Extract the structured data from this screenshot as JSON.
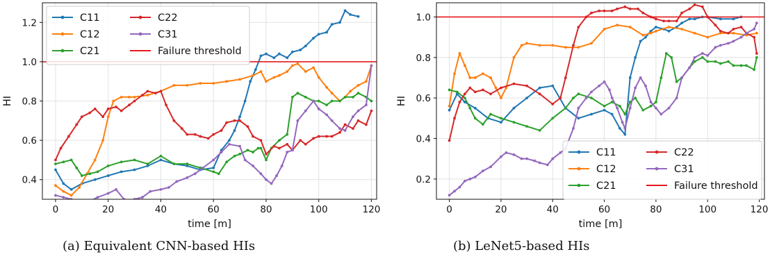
{
  "chart_data": [
    {
      "type": "line",
      "caption": "(a) Equivalent CNN-based HIs",
      "xlabel": "time [m]",
      "ylabel": "HI",
      "xlim": [
        -5,
        122
      ],
      "ylim": [
        0.3,
        1.3
      ],
      "xticks": [
        0,
        20,
        40,
        60,
        80,
        100,
        120
      ],
      "yticks": [
        0.4,
        0.6,
        0.8,
        1.0,
        1.2
      ],
      "ytick_labels": [
        "0.4",
        "0.6",
        "0.8",
        "1.0",
        "1.2"
      ],
      "grid": true,
      "legend_position": "upper-left",
      "threshold": {
        "name": "Failure threshold",
        "value": 1.0,
        "color": "#e41a1c"
      },
      "series": [
        {
          "name": "C11",
          "color": "#1f77b4",
          "x": [
            0,
            3,
            6,
            10,
            15,
            20,
            25,
            30,
            35,
            40,
            45,
            50,
            55,
            60,
            63,
            66,
            68,
            70,
            72,
            74,
            76,
            78,
            80,
            83,
            85,
            88,
            90,
            93,
            95,
            98,
            100,
            103,
            105,
            108,
            110,
            112,
            115
          ],
          "y": [
            0.45,
            0.38,
            0.35,
            0.38,
            0.4,
            0.42,
            0.44,
            0.45,
            0.47,
            0.5,
            0.48,
            0.47,
            0.45,
            0.46,
            0.55,
            0.6,
            0.65,
            0.72,
            0.8,
            0.9,
            0.96,
            1.03,
            1.04,
            1.02,
            1.04,
            1.02,
            1.05,
            1.06,
            1.08,
            1.12,
            1.14,
            1.15,
            1.19,
            1.2,
            1.26,
            1.24,
            1.23
          ]
        },
        {
          "name": "C12",
          "color": "#ff7f0e",
          "x": [
            0,
            3,
            6,
            9,
            12,
            15,
            18,
            20,
            22,
            25,
            28,
            30,
            35,
            40,
            45,
            50,
            55,
            60,
            65,
            70,
            75,
            78,
            80,
            83,
            85,
            88,
            90,
            92,
            95,
            98,
            100,
            103,
            105,
            108,
            110,
            112,
            115,
            118,
            120
          ],
          "y": [
            0.37,
            0.34,
            0.32,
            0.36,
            0.43,
            0.5,
            0.6,
            0.72,
            0.8,
            0.82,
            0.82,
            0.82,
            0.83,
            0.85,
            0.88,
            0.88,
            0.89,
            0.89,
            0.9,
            0.91,
            0.93,
            0.95,
            0.9,
            0.92,
            0.93,
            0.95,
            0.98,
            0.99,
            0.95,
            0.97,
            0.92,
            0.87,
            0.84,
            0.8,
            0.82,
            0.85,
            0.88,
            0.9,
            0.98
          ]
        },
        {
          "name": "C21",
          "color": "#2ca02c",
          "x": [
            0,
            3,
            6,
            8,
            10,
            13,
            16,
            20,
            25,
            30,
            35,
            40,
            45,
            50,
            55,
            60,
            62,
            65,
            68,
            70,
            73,
            75,
            77,
            78,
            80,
            82,
            85,
            88,
            90,
            92,
            95,
            98,
            100,
            103,
            105,
            108,
            110,
            113,
            115,
            118,
            120
          ],
          "y": [
            0.48,
            0.49,
            0.5,
            0.46,
            0.42,
            0.43,
            0.44,
            0.47,
            0.49,
            0.5,
            0.48,
            0.52,
            0.48,
            0.48,
            0.46,
            0.44,
            0.43,
            0.49,
            0.52,
            0.53,
            0.55,
            0.54,
            0.56,
            0.56,
            0.5,
            0.56,
            0.6,
            0.63,
            0.82,
            0.84,
            0.82,
            0.8,
            0.8,
            0.78,
            0.8,
            0.8,
            0.82,
            0.82,
            0.84,
            0.82,
            0.8
          ]
        },
        {
          "name": "C22",
          "color": "#d62728",
          "x": [
            0,
            2,
            5,
            8,
            10,
            13,
            15,
            18,
            20,
            23,
            25,
            28,
            30,
            33,
            35,
            38,
            40,
            42,
            45,
            48,
            50,
            53,
            55,
            58,
            60,
            63,
            65,
            68,
            70,
            73,
            75,
            78,
            80,
            83,
            85,
            88,
            90,
            93,
            95,
            98,
            100,
            103,
            105,
            108,
            110,
            113,
            115,
            118,
            120
          ],
          "y": [
            0.5,
            0.56,
            0.62,
            0.68,
            0.72,
            0.74,
            0.76,
            0.72,
            0.76,
            0.77,
            0.75,
            0.78,
            0.8,
            0.83,
            0.85,
            0.84,
            0.85,
            0.78,
            0.7,
            0.66,
            0.63,
            0.63,
            0.62,
            0.61,
            0.63,
            0.65,
            0.69,
            0.7,
            0.7,
            0.67,
            0.62,
            0.6,
            0.53,
            0.57,
            0.56,
            0.58,
            0.55,
            0.6,
            0.58,
            0.61,
            0.62,
            0.62,
            0.62,
            0.64,
            0.68,
            0.66,
            0.7,
            0.68,
            0.75
          ]
        },
        {
          "name": "C31",
          "color": "#9467bd",
          "x": [
            0,
            3,
            6,
            8,
            10,
            13,
            16,
            20,
            23,
            26,
            28,
            30,
            33,
            36,
            40,
            43,
            46,
            50,
            53,
            56,
            60,
            63,
            66,
            70,
            72,
            75,
            78,
            80,
            82,
            84,
            86,
            88,
            90,
            92,
            95,
            98,
            100,
            103,
            105,
            108,
            110,
            113,
            115,
            118,
            120
          ],
          "y": [
            0.32,
            0.31,
            0.3,
            0.29,
            0.27,
            0.29,
            0.31,
            0.33,
            0.35,
            0.3,
            0.27,
            0.3,
            0.31,
            0.34,
            0.35,
            0.36,
            0.39,
            0.41,
            0.43,
            0.46,
            0.5,
            0.54,
            0.58,
            0.57,
            0.5,
            0.47,
            0.43,
            0.4,
            0.38,
            0.42,
            0.47,
            0.54,
            0.55,
            0.7,
            0.75,
            0.8,
            0.76,
            0.73,
            0.7,
            0.66,
            0.65,
            0.72,
            0.75,
            0.78,
            0.98
          ]
        }
      ]
    },
    {
      "type": "line",
      "caption": "(b) LeNet5-based HIs",
      "xlabel": "time [m]",
      "ylabel": "HI",
      "xlim": [
        -5,
        122
      ],
      "ylim": [
        0.1,
        1.07
      ],
      "xticks": [
        0,
        20,
        40,
        60,
        80,
        100,
        120
      ],
      "yticks": [
        0.2,
        0.4,
        0.6,
        0.8,
        1.0
      ],
      "ytick_labels": [
        "0.2",
        "0.4",
        "0.6",
        "0.8",
        "1.0"
      ],
      "grid": true,
      "legend_position": "lower-right",
      "threshold": {
        "name": "Failure threshold",
        "value": 1.0,
        "color": "#e41a1c"
      },
      "series": [
        {
          "name": "C11",
          "color": "#1f77b4",
          "x": [
            0,
            3,
            6,
            10,
            15,
            20,
            25,
            30,
            35,
            40,
            45,
            50,
            55,
            60,
            63,
            66,
            68,
            70,
            72,
            74,
            76,
            78,
            80,
            83,
            85,
            88,
            90,
            93,
            95,
            98,
            100,
            105,
            110,
            113
          ],
          "y": [
            0.54,
            0.62,
            0.58,
            0.55,
            0.5,
            0.48,
            0.55,
            0.6,
            0.65,
            0.66,
            0.55,
            0.5,
            0.52,
            0.54,
            0.52,
            0.45,
            0.42,
            0.7,
            0.8,
            0.88,
            0.9,
            0.93,
            0.95,
            0.94,
            0.93,
            0.95,
            0.97,
            0.99,
            0.99,
            1.0,
            1.0,
            0.99,
            0.99,
            1.0
          ]
        },
        {
          "name": "C12",
          "color": "#ff7f0e",
          "x": [
            0,
            2,
            4,
            6,
            8,
            10,
            13,
            16,
            18,
            20,
            22,
            25,
            28,
            30,
            35,
            40,
            45,
            50,
            55,
            60,
            65,
            70,
            75,
            78,
            80,
            85,
            90,
            95,
            100,
            105,
            110,
            115,
            119
          ],
          "y": [
            0.56,
            0.72,
            0.82,
            0.76,
            0.7,
            0.7,
            0.72,
            0.7,
            0.65,
            0.6,
            0.65,
            0.8,
            0.86,
            0.87,
            0.86,
            0.86,
            0.85,
            0.85,
            0.87,
            0.94,
            0.96,
            0.95,
            0.91,
            0.92,
            0.93,
            0.95,
            0.94,
            0.92,
            0.9,
            0.92,
            0.92,
            0.91,
            0.92
          ]
        },
        {
          "name": "C21",
          "color": "#2ca02c",
          "x": [
            0,
            3,
            6,
            8,
            10,
            13,
            16,
            20,
            25,
            30,
            35,
            40,
            45,
            48,
            50,
            55,
            60,
            63,
            66,
            68,
            70,
            72,
            75,
            78,
            80,
            82,
            84,
            86,
            88,
            90,
            93,
            95,
            98,
            100,
            103,
            105,
            108,
            110,
            113,
            115,
            118,
            119
          ],
          "y": [
            0.64,
            0.63,
            0.6,
            0.55,
            0.5,
            0.47,
            0.52,
            0.5,
            0.48,
            0.46,
            0.44,
            0.5,
            0.55,
            0.6,
            0.62,
            0.6,
            0.56,
            0.58,
            0.56,
            0.52,
            0.58,
            0.6,
            0.54,
            0.56,
            0.58,
            0.7,
            0.82,
            0.8,
            0.68,
            0.7,
            0.75,
            0.78,
            0.8,
            0.78,
            0.78,
            0.77,
            0.78,
            0.76,
            0.76,
            0.76,
            0.74,
            0.8
          ]
        },
        {
          "name": "C22",
          "color": "#d62728",
          "x": [
            0,
            2,
            4,
            6,
            8,
            10,
            13,
            16,
            20,
            25,
            30,
            35,
            40,
            43,
            45,
            48,
            50,
            53,
            55,
            58,
            60,
            63,
            65,
            68,
            70,
            73,
            75,
            78,
            80,
            83,
            85,
            88,
            90,
            93,
            95,
            98,
            100,
            103,
            105,
            108,
            110,
            113,
            115,
            118,
            119
          ],
          "y": [
            0.39,
            0.5,
            0.58,
            0.62,
            0.65,
            0.63,
            0.64,
            0.62,
            0.65,
            0.67,
            0.66,
            0.62,
            0.57,
            0.6,
            0.7,
            0.86,
            0.95,
            1.0,
            1.02,
            1.03,
            1.03,
            1.03,
            1.04,
            1.05,
            1.04,
            1.04,
            1.02,
            1.0,
            0.99,
            0.98,
            0.98,
            0.98,
            1.02,
            1.04,
            1.06,
            1.05,
            1.0,
            0.96,
            0.93,
            0.92,
            0.94,
            0.95,
            0.92,
            0.9,
            0.82
          ]
        },
        {
          "name": "C31",
          "color": "#9467bd",
          "x": [
            0,
            2,
            4,
            6,
            8,
            10,
            13,
            16,
            20,
            22,
            25,
            28,
            30,
            33,
            35,
            38,
            40,
            43,
            45,
            48,
            50,
            53,
            55,
            58,
            60,
            62,
            63,
            65,
            67,
            68,
            70,
            72,
            74,
            76,
            78,
            80,
            82,
            85,
            88,
            90,
            93,
            95,
            98,
            100,
            103,
            105,
            108,
            110,
            113,
            115,
            118,
            119
          ],
          "y": [
            0.12,
            0.14,
            0.16,
            0.19,
            0.2,
            0.21,
            0.24,
            0.26,
            0.31,
            0.33,
            0.32,
            0.3,
            0.3,
            0.29,
            0.28,
            0.27,
            0.3,
            0.33,
            0.35,
            0.45,
            0.55,
            0.6,
            0.63,
            0.66,
            0.68,
            0.64,
            0.6,
            0.55,
            0.48,
            0.45,
            0.55,
            0.65,
            0.7,
            0.66,
            0.58,
            0.55,
            0.52,
            0.55,
            0.6,
            0.7,
            0.75,
            0.8,
            0.82,
            0.81,
            0.85,
            0.86,
            0.87,
            0.88,
            0.9,
            0.92,
            0.94,
            0.97
          ]
        }
      ]
    }
  ]
}
